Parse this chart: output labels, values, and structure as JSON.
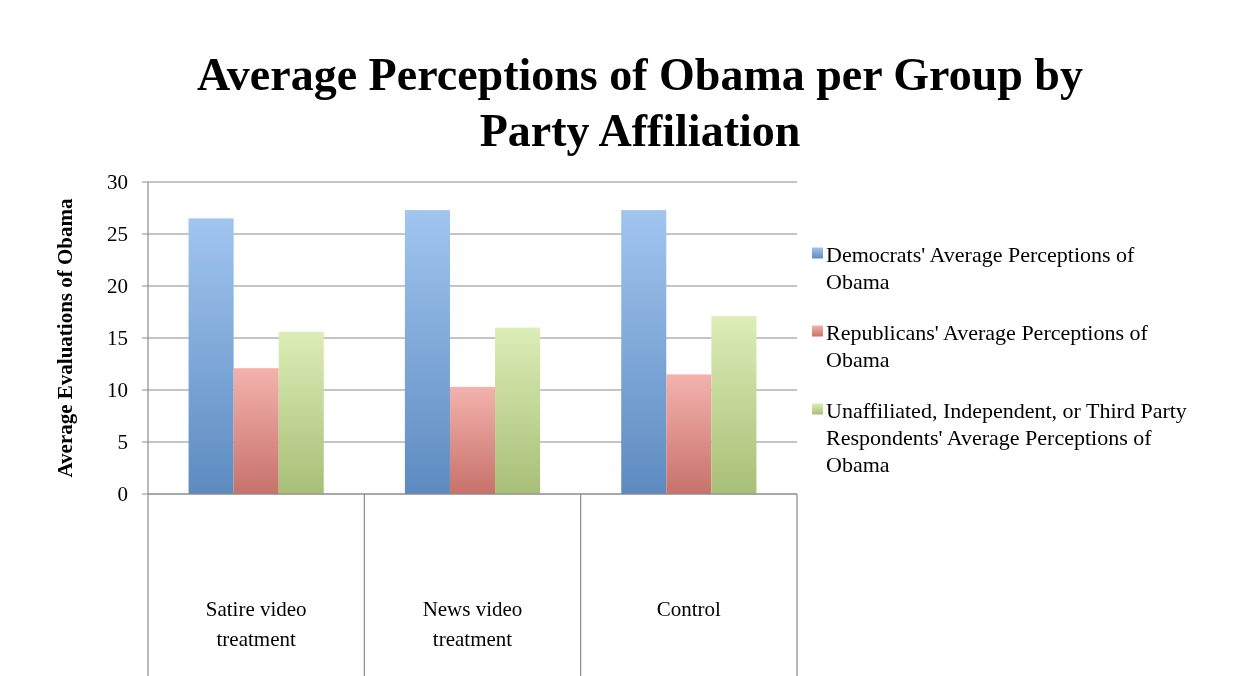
{
  "chart_data": {
    "type": "bar",
    "title": "Average Perceptions of Obama per Group by Party Affiliation",
    "ylabel": "Average Evaluations of Obama",
    "categories": [
      "Satire video treatment",
      "News video treatment",
      "Control"
    ],
    "series": [
      {
        "name": "Democrats' Average Perceptions of Obama",
        "color": "#6fa6e6",
        "values": [
          26.5,
          27.3,
          27.3
        ]
      },
      {
        "name": "Republicans' Average Perceptions of Obama",
        "color": "#ee8880",
        "values": [
          12.1,
          10.3,
          11.5
        ]
      },
      {
        "name": "Unaffiliated, Independent, or Third Party Respondents' Average Perceptions of Obama",
        "color": "#c9e48e",
        "values": [
          15.6,
          16.0,
          17.1
        ]
      }
    ],
    "ylim": [
      0,
      30
    ],
    "yticks": [
      0,
      5,
      10,
      15,
      20,
      25,
      30
    ],
    "grid": "y",
    "legend": "right"
  }
}
